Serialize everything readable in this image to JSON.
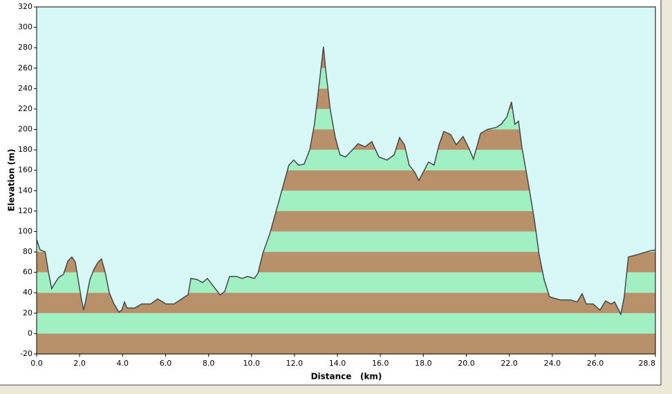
{
  "chart_data": {
    "type": "area",
    "x_label": "Distance   (km)",
    "y_label": "Elevation (m)",
    "xlim": [
      0,
      28.8
    ],
    "ylim": [
      -20,
      320
    ],
    "xticks": [
      {
        "value": 0,
        "label": "0.0"
      },
      {
        "value": 2,
        "label": "2.0"
      },
      {
        "value": 4,
        "label": "4.0"
      },
      {
        "value": 6,
        "label": "6.0"
      },
      {
        "value": 8,
        "label": "8.0"
      },
      {
        "value": 10,
        "label": "10.0"
      },
      {
        "value": 12,
        "label": "12.0"
      },
      {
        "value": 14,
        "label": "14.0"
      },
      {
        "value": 16,
        "label": "16.0"
      },
      {
        "value": 18,
        "label": "18.0"
      },
      {
        "value": 20,
        "label": "20.0"
      },
      {
        "value": 22,
        "label": "22.0"
      },
      {
        "value": 24,
        "label": "24.0"
      },
      {
        "value": 26,
        "label": "26.0"
      },
      {
        "value": 28.8,
        "label": "28.8"
      }
    ],
    "yticks": [
      -20,
      0,
      20,
      40,
      60,
      80,
      100,
      120,
      140,
      160,
      180,
      200,
      220,
      240,
      260,
      280,
      300,
      320
    ],
    "band_colors": [
      "#b8906a",
      "#a0f0c4"
    ],
    "background": "#d8f8f8",
    "line_color": "#464646",
    "x": [
      0,
      0.16,
      0.4,
      0.55,
      0.7,
      0.87,
      1.03,
      1.25,
      1.45,
      1.64,
      1.8,
      1.93,
      2.09,
      2.19,
      2.32,
      2.48,
      2.67,
      2.86,
      3.02,
      3.19,
      3.38,
      3.6,
      3.83,
      3.96,
      4.09,
      4.21,
      4.57,
      4.89,
      5.31,
      5.63,
      6.02,
      6.4,
      6.82,
      7.05,
      7.18,
      7.46,
      7.72,
      7.95,
      8.17,
      8.53,
      8.75,
      8.98,
      9.3,
      9.56,
      9.81,
      10.13,
      10.3,
      10.52,
      10.84,
      11.16,
      11.49,
      11.74,
      11.97,
      12.19,
      12.45,
      12.71,
      12.93,
      13.16,
      13.35,
      13.45,
      13.67,
      13.9,
      14.12,
      14.38,
      14.7,
      14.96,
      15.28,
      15.6,
      15.93,
      16.31,
      16.64,
      16.89,
      17.12,
      17.34,
      17.6,
      17.79,
      17.99,
      18.24,
      18.5,
      18.73,
      18.95,
      19.27,
      19.53,
      19.85,
      20.11,
      20.33,
      20.66,
      20.98,
      21.4,
      21.62,
      21.88,
      22.1,
      22.26,
      22.43,
      22.59,
      22.91,
      23.17,
      23.39,
      23.62,
      23.87,
      24.36,
      24.84,
      25.16,
      25.39,
      25.58,
      25.9,
      26.22,
      26.48,
      26.74,
      26.9,
      27.19,
      27.35,
      27.54,
      27.9,
      28.22,
      28.54,
      28.8
    ],
    "values": [
      92,
      82,
      80,
      60,
      44,
      50,
      55,
      58,
      71,
      75,
      70,
      53,
      33,
      23,
      36,
      53,
      63,
      70,
      73,
      60,
      40,
      29,
      21,
      23,
      31,
      25,
      25,
      29,
      29,
      34,
      29,
      29,
      35,
      38,
      54,
      53,
      50,
      54,
      48,
      38,
      41,
      56,
      56,
      54,
      56,
      54,
      59,
      78,
      97,
      121,
      146,
      165,
      170,
      165,
      166,
      180,
      205,
      246,
      281,
      259,
      219,
      192,
      175,
      173,
      180,
      186,
      183,
      188,
      173,
      170,
      175,
      192,
      185,
      165,
      158,
      150,
      158,
      168,
      165,
      185,
      198,
      195,
      185,
      193,
      182,
      171,
      196,
      200,
      202,
      205,
      212,
      227,
      205,
      208,
      182,
      144,
      111,
      77,
      53,
      36,
      33,
      33,
      31,
      39,
      29,
      29,
      23,
      32,
      29,
      31,
      19,
      36,
      75,
      77,
      79,
      81,
      82
    ]
  }
}
